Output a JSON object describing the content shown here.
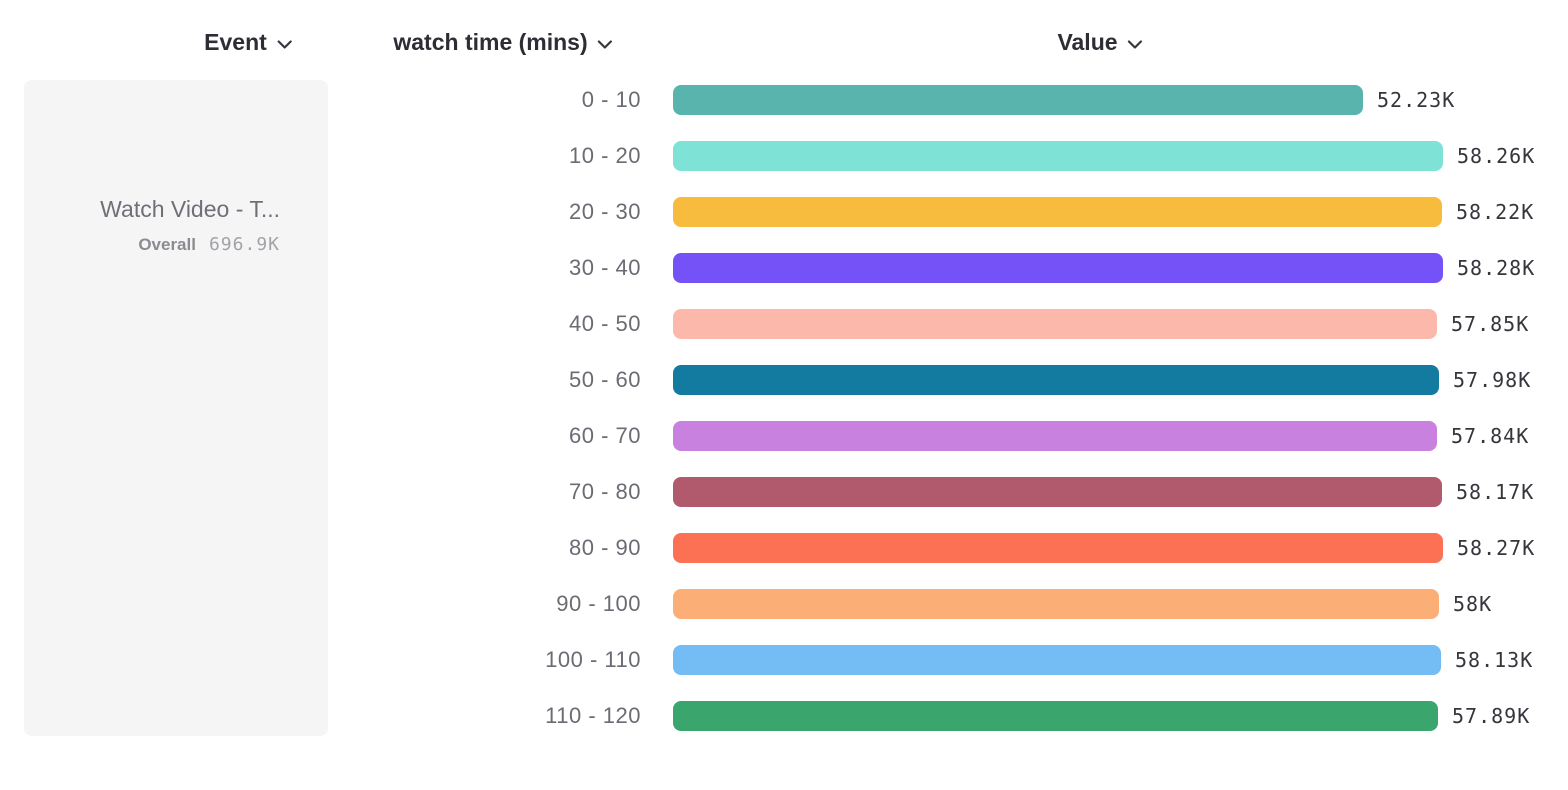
{
  "header": {
    "columns": [
      {
        "id": "event",
        "label": "Event"
      },
      {
        "id": "breakdown",
        "label": "watch time (mins)"
      },
      {
        "id": "value",
        "label": "Value"
      }
    ]
  },
  "event_card": {
    "title": "Watch Video - T...",
    "overall_label": "Overall",
    "overall_value": "696.9K"
  },
  "chart_data": {
    "type": "bar",
    "orientation": "horizontal",
    "breakdown_label": "watch time (mins)",
    "value_axis_label": "Value",
    "categories": [
      "0 - 10",
      "10 - 20",
      "20 - 30",
      "30 - 40",
      "40 - 50",
      "50 - 60",
      "60 - 70",
      "70 - 80",
      "80 - 90",
      "90 - 100",
      "100 - 110",
      "110 - 120"
    ],
    "values": [
      52230,
      58260,
      58220,
      58280,
      57850,
      57980,
      57840,
      58170,
      58270,
      58000,
      58130,
      57890
    ],
    "value_labels": [
      "52.23K",
      "58.26K",
      "58.22K",
      "58.28K",
      "57.85K",
      "57.98K",
      "57.84K",
      "58.17K",
      "58.27K",
      "58K",
      "58.13K",
      "57.89K"
    ],
    "bar_colors": [
      "#58b4ad",
      "#7ee2d7",
      "#f7bc3d",
      "#7552f8",
      "#fdb8ac",
      "#127b9f",
      "#c981df",
      "#b15a6e",
      "#fc7053",
      "#fcae77",
      "#74bdf4",
      "#3ba56e"
    ],
    "axis_min": 0,
    "axis_max": 58280,
    "grid": false,
    "legend": false,
    "title": ""
  }
}
